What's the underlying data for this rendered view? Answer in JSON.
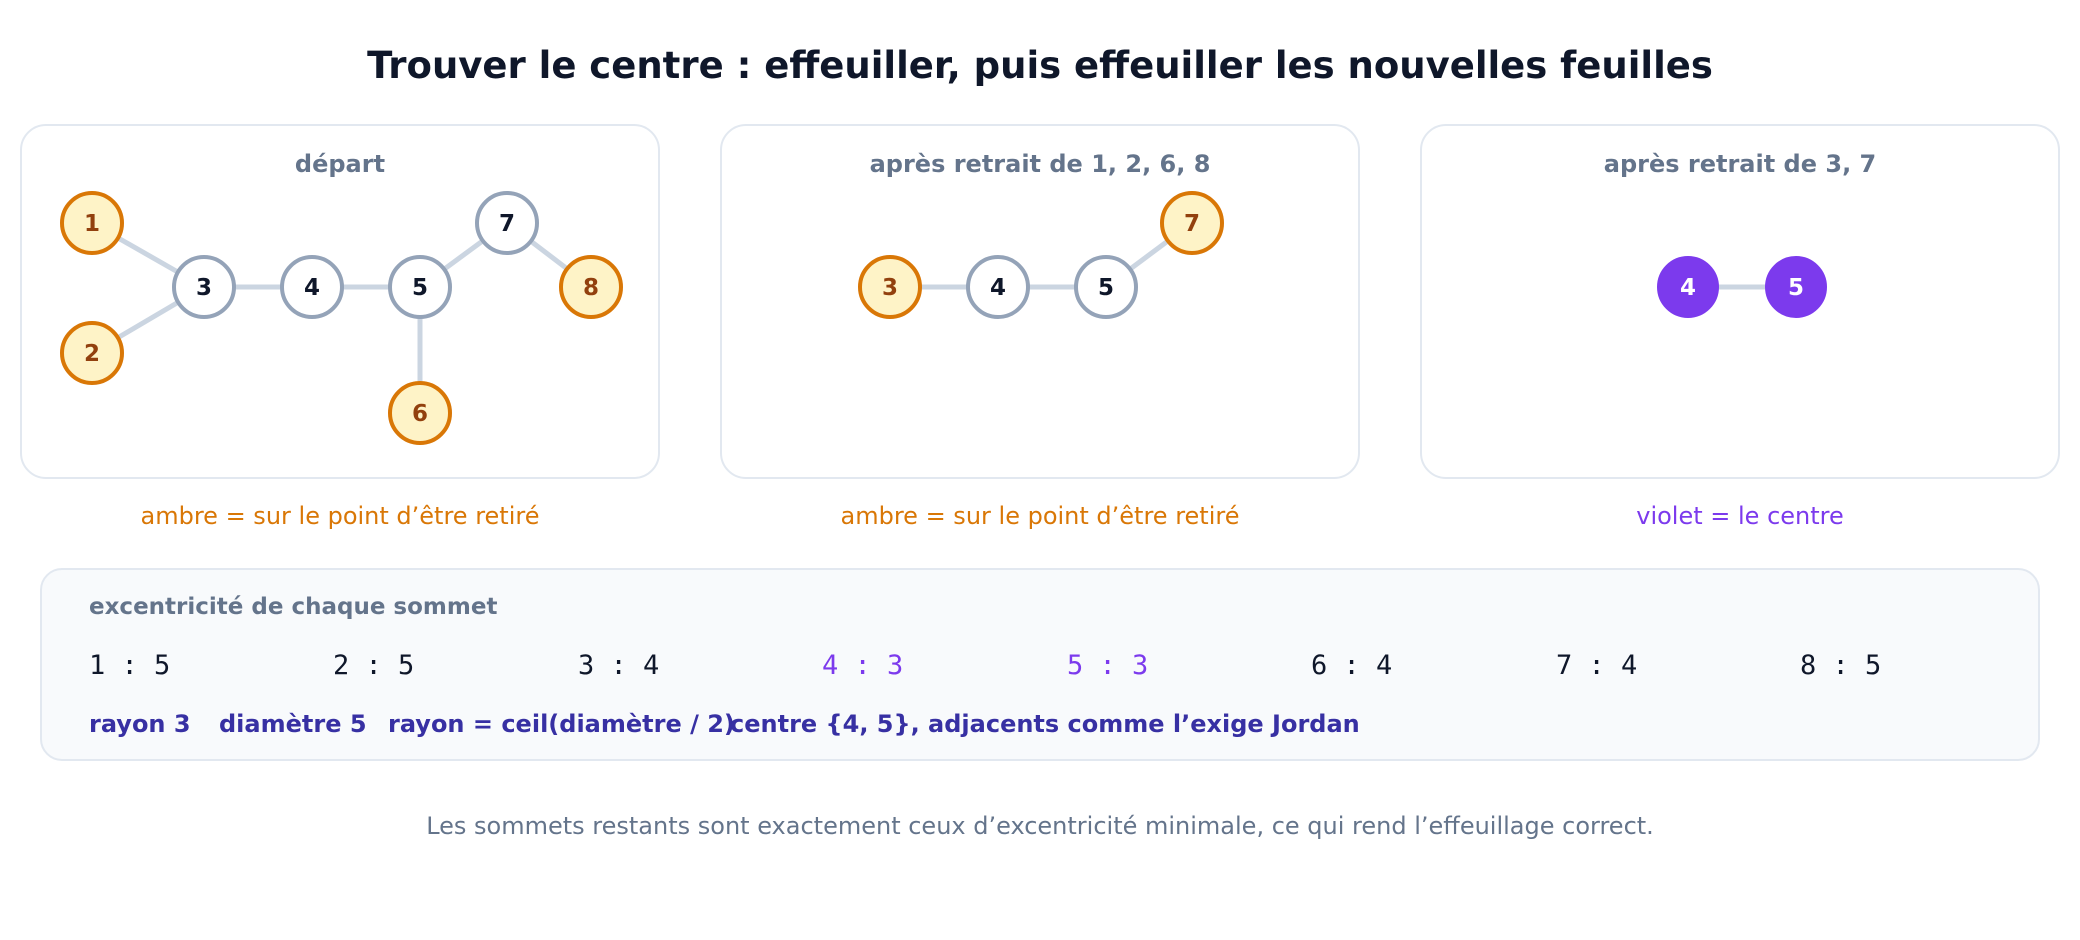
{
  "title": "Trouver le centre : effeuiller, puis effeuiller les nouvelles feuilles",
  "colors": {
    "leaf_fill": "#fef3c7",
    "leaf_stroke": "#d97706",
    "leaf_text": "#92400e",
    "node_stroke": "#94a3b8",
    "node_text": "#0f172a",
    "edge": "#cbd5e1",
    "center_fill": "#7c3aed",
    "center_text": "#ffffff",
    "amber_caption": "#d97706",
    "violet_caption": "#7c3aed"
  },
  "panels": [
    {
      "title": "départ",
      "caption": "ambre = sur le point d’être retiré",
      "caption_kind": "amber",
      "nodes": [
        {
          "id": "1",
          "kind": "leaf"
        },
        {
          "id": "2",
          "kind": "leaf"
        },
        {
          "id": "3",
          "kind": "normal"
        },
        {
          "id": "4",
          "kind": "normal"
        },
        {
          "id": "5",
          "kind": "normal"
        },
        {
          "id": "6",
          "kind": "leaf"
        },
        {
          "id": "7",
          "kind": "normal"
        },
        {
          "id": "8",
          "kind": "leaf"
        }
      ],
      "edges": [
        [
          "1",
          "3"
        ],
        [
          "2",
          "3"
        ],
        [
          "3",
          "4"
        ],
        [
          "4",
          "5"
        ],
        [
          "5",
          "6"
        ],
        [
          "5",
          "7"
        ],
        [
          "7",
          "8"
        ]
      ]
    },
    {
      "title": "après retrait de 1, 2, 6, 8",
      "caption": "ambre = sur le point d’être retiré",
      "caption_kind": "amber",
      "nodes": [
        {
          "id": "3",
          "kind": "leaf"
        },
        {
          "id": "4",
          "kind": "normal"
        },
        {
          "id": "5",
          "kind": "normal"
        },
        {
          "id": "7",
          "kind": "leaf"
        }
      ],
      "edges": [
        [
          "3",
          "4"
        ],
        [
          "4",
          "5"
        ],
        [
          "5",
          "7"
        ]
      ]
    },
    {
      "title": "après retrait de 3, 7",
      "caption": "violet = le centre",
      "caption_kind": "violet",
      "nodes": [
        {
          "id": "4",
          "kind": "center"
        },
        {
          "id": "5",
          "kind": "center"
        }
      ],
      "edges": [
        [
          "4",
          "5"
        ]
      ]
    }
  ],
  "eccentricity": {
    "title": "excentricité de chaque sommet",
    "items": [
      {
        "text": "1 : 5",
        "highlight": false
      },
      {
        "text": "2 : 5",
        "highlight": false
      },
      {
        "text": "3 : 4",
        "highlight": false
      },
      {
        "text": "4 : 3",
        "highlight": true
      },
      {
        "text": "5 : 3",
        "highlight": true
      },
      {
        "text": "6 : 4",
        "highlight": false
      },
      {
        "text": "7 : 4",
        "highlight": false
      },
      {
        "text": "8 : 5",
        "highlight": false
      }
    ],
    "stats": [
      "rayon 3",
      "diamètre 5",
      "rayon = ceil(diamètre / 2)",
      "centre {4, 5}, adjacents comme l’exige Jordan"
    ]
  },
  "footnote": "Les sommets restants sont exactement ceux d’excentricité minimale, ce qui rend l’effeuillage correct."
}
